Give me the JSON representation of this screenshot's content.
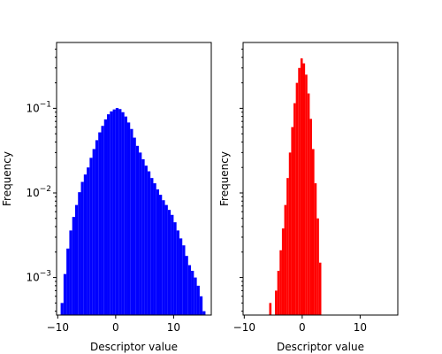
{
  "chart_data": [
    {
      "type": "bar",
      "subtype": "histogram",
      "xlabel": "Descriptor value",
      "ylabel": "Frequency",
      "yscale": "log",
      "ylim": [
        0.00036,
        0.6
      ],
      "xlim": [
        -10.2,
        16.5
      ],
      "xticks": [
        {
          "value": -10,
          "label": "−10"
        },
        {
          "value": 0,
          "label": "0"
        },
        {
          "value": 10,
          "label": "10"
        }
      ],
      "yticks": [
        {
          "value": 0.001,
          "base": "10",
          "exp": "−3"
        },
        {
          "value": 0.01,
          "base": "10",
          "exp": "−2"
        },
        {
          "value": 0.1,
          "base": "10",
          "exp": "−1"
        }
      ],
      "color": "#0000ff",
      "bins": [
        [
          -9.25,
          0.0005
        ],
        [
          -8.75,
          0.0011
        ],
        [
          -8.25,
          0.0022
        ],
        [
          -7.75,
          0.0036
        ],
        [
          -7.25,
          0.0052
        ],
        [
          -6.75,
          0.0072
        ],
        [
          -6.25,
          0.0102
        ],
        [
          -5.75,
          0.0135
        ],
        [
          -5.25,
          0.0165
        ],
        [
          -4.75,
          0.02
        ],
        [
          -4.25,
          0.026
        ],
        [
          -3.75,
          0.033
        ],
        [
          -3.25,
          0.042
        ],
        [
          -2.75,
          0.052
        ],
        [
          -2.25,
          0.062
        ],
        [
          -1.75,
          0.074
        ],
        [
          -1.25,
          0.085
        ],
        [
          -0.75,
          0.092
        ],
        [
          -0.25,
          0.097
        ],
        [
          0.25,
          0.101
        ],
        [
          0.75,
          0.098
        ],
        [
          1.25,
          0.09
        ],
        [
          1.75,
          0.08
        ],
        [
          2.25,
          0.068
        ],
        [
          2.75,
          0.057
        ],
        [
          3.25,
          0.045
        ],
        [
          3.75,
          0.036
        ],
        [
          4.25,
          0.03
        ],
        [
          4.75,
          0.025
        ],
        [
          5.25,
          0.021
        ],
        [
          5.75,
          0.018
        ],
        [
          6.25,
          0.015
        ],
        [
          6.75,
          0.013
        ],
        [
          7.25,
          0.011
        ],
        [
          7.75,
          0.0095
        ],
        [
          8.25,
          0.0082
        ],
        [
          8.75,
          0.0072
        ],
        [
          9.25,
          0.0063
        ],
        [
          9.75,
          0.0055
        ],
        [
          10.25,
          0.0045
        ],
        [
          10.75,
          0.0036
        ],
        [
          11.25,
          0.0029
        ],
        [
          11.75,
          0.0024
        ],
        [
          12.25,
          0.0018
        ],
        [
          12.75,
          0.0014
        ],
        [
          13.25,
          0.0012
        ],
        [
          13.75,
          0.001
        ],
        [
          14.25,
          0.0008
        ],
        [
          14.75,
          0.0006
        ],
        [
          15.25,
          0.0004
        ]
      ]
    },
    {
      "type": "bar",
      "subtype": "histogram",
      "xlabel": "Descriptor value",
      "ylabel": "Frequency",
      "yscale": "log",
      "ylim": [
        0.00036,
        0.6
      ],
      "xlim": [
        -10.2,
        16.5
      ],
      "xticks": [
        {
          "value": -10,
          "label": "−10"
        },
        {
          "value": 0,
          "label": "0"
        },
        {
          "value": 10,
          "label": "10"
        }
      ],
      "shared_y": true,
      "color": "#ff0000",
      "bins": [
        [
          -5.5,
          0.0005
        ],
        [
          -4.5,
          0.0007
        ],
        [
          -4.1,
          0.0012
        ],
        [
          -3.7,
          0.0021
        ],
        [
          -3.3,
          0.0038
        ],
        [
          -2.9,
          0.0072
        ],
        [
          -2.5,
          0.015
        ],
        [
          -2.1,
          0.03
        ],
        [
          -1.7,
          0.06
        ],
        [
          -1.3,
          0.115
        ],
        [
          -0.9,
          0.2
        ],
        [
          -0.5,
          0.3
        ],
        [
          -0.1,
          0.39
        ],
        [
          0.3,
          0.34
        ],
        [
          0.7,
          0.25
        ],
        [
          1.1,
          0.15
        ],
        [
          1.5,
          0.075
        ],
        [
          1.9,
          0.033
        ],
        [
          2.3,
          0.013
        ],
        [
          2.7,
          0.005
        ],
        [
          3.1,
          0.0015
        ]
      ]
    }
  ]
}
